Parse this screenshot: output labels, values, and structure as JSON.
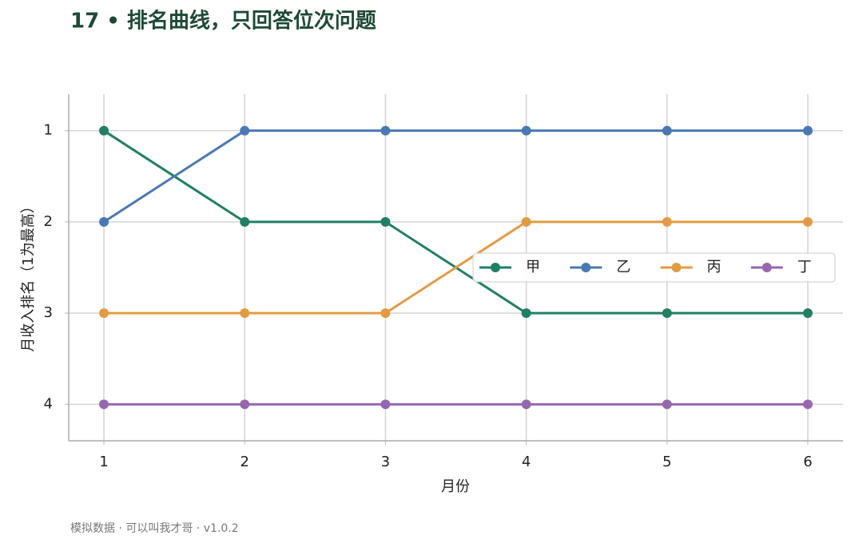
{
  "chart_data": {
    "type": "line",
    "title": "17 • 排名曲线，只回答位次问题",
    "xlabel": "月份",
    "ylabel": "月收入排名（1为最高）",
    "footer": "模拟数据 · 可以叫我才哥 · v1.0.2",
    "x": [
      1,
      2,
      3,
      4,
      5,
      6
    ],
    "series": [
      {
        "name": "甲",
        "color": "#1f8063",
        "values": [
          1,
          2,
          2,
          3,
          3,
          3
        ]
      },
      {
        "name": "乙",
        "color": "#4a78b4",
        "values": [
          2,
          1,
          1,
          1,
          1,
          1
        ]
      },
      {
        "name": "丙",
        "color": "#e39b42",
        "values": [
          3,
          3,
          3,
          2,
          2,
          2
        ]
      },
      {
        "name": "丁",
        "color": "#9467b0",
        "values": [
          4,
          4,
          4,
          4,
          4,
          4
        ]
      }
    ],
    "xlim": [
      0.75,
      6.25
    ],
    "xticks": [
      1,
      2,
      3,
      4,
      5,
      6
    ],
    "ylim": [
      0.6,
      4.4
    ],
    "yticks": [
      1,
      2,
      3,
      4
    ],
    "y_inverted": true,
    "grid": true,
    "legend": "center right"
  }
}
